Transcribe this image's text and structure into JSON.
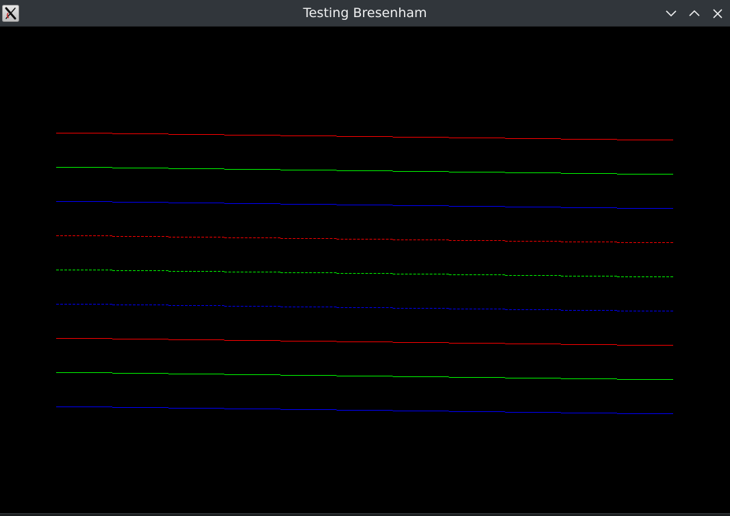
{
  "window": {
    "title": "Testing Bresenham"
  },
  "icons": {
    "app": "x11-app-icon",
    "minimize": "chevron-down-icon",
    "maximize": "chevron-up-icon",
    "close": "close-icon"
  },
  "colors": {
    "red": "#ff0000",
    "green": "#00ff00",
    "blue": "#0000ff"
  },
  "lines": [
    {
      "color": "#ff0000",
      "style": "solid"
    },
    {
      "color": "#00ff00",
      "style": "solid"
    },
    {
      "color": "#0000ff",
      "style": "solid"
    },
    {
      "color": "#ff0000",
      "style": "dashed"
    },
    {
      "color": "#00ff00",
      "style": "dashed"
    },
    {
      "color": "#0000ff",
      "style": "dashed"
    },
    {
      "color": "#ff0000",
      "style": "solid"
    },
    {
      "color": "#00ff00",
      "style": "solid"
    },
    {
      "color": "#0000ff",
      "style": "solid"
    }
  ]
}
